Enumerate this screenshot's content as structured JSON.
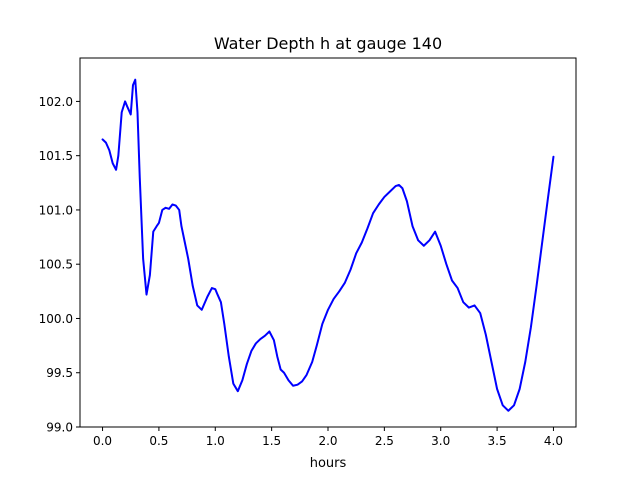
{
  "chart_data": {
    "type": "line",
    "title": "Water Depth h at gauge 140",
    "xlabel": "hours",
    "ylabel": "",
    "xlim": [
      -0.2,
      4.2
    ],
    "ylim": [
      99.0,
      102.4
    ],
    "grid": false,
    "x_ticks": [
      0.0,
      0.5,
      1.0,
      1.5,
      2.0,
      2.5,
      3.0,
      3.5,
      4.0
    ],
    "x_tick_labels": [
      "0.0",
      "0.5",
      "1.0",
      "1.5",
      "2.0",
      "2.5",
      "3.0",
      "3.5",
      "4.0"
    ],
    "y_ticks": [
      99.0,
      99.5,
      100.0,
      100.5,
      101.0,
      101.5,
      102.0
    ],
    "y_tick_labels": [
      "99.0",
      "99.5",
      "100.0",
      "100.5",
      "101.0",
      "101.5",
      "102.0"
    ],
    "series": [
      {
        "color": "#0000ff",
        "x": [
          0.0,
          0.03,
          0.06,
          0.09,
          0.12,
          0.14,
          0.17,
          0.2,
          0.22,
          0.25,
          0.27,
          0.29,
          0.31,
          0.33,
          0.36,
          0.39,
          0.42,
          0.45,
          0.48,
          0.5,
          0.53,
          0.56,
          0.59,
          0.62,
          0.65,
          0.68,
          0.7,
          0.73,
          0.76,
          0.8,
          0.84,
          0.88,
          0.93,
          0.97,
          1.0,
          1.02,
          1.05,
          1.08,
          1.12,
          1.16,
          1.2,
          1.24,
          1.28,
          1.32,
          1.36,
          1.4,
          1.44,
          1.48,
          1.52,
          1.55,
          1.58,
          1.61,
          1.65,
          1.69,
          1.73,
          1.77,
          1.81,
          1.86,
          1.9,
          1.95,
          2.0,
          2.05,
          2.1,
          2.15,
          2.2,
          2.25,
          2.3,
          2.35,
          2.4,
          2.45,
          2.5,
          2.55,
          2.6,
          2.63,
          2.66,
          2.7,
          2.75,
          2.8,
          2.85,
          2.9,
          2.95,
          3.0,
          3.05,
          3.1,
          3.15,
          3.2,
          3.25,
          3.3,
          3.35,
          3.4,
          3.45,
          3.5,
          3.55,
          3.6,
          3.65,
          3.7,
          3.75,
          3.8,
          3.85,
          3.9,
          3.95,
          4.0
        ],
        "y": [
          101.65,
          101.62,
          101.55,
          101.43,
          101.37,
          101.5,
          101.9,
          102.0,
          101.95,
          101.88,
          102.15,
          102.2,
          101.9,
          101.3,
          100.55,
          100.22,
          100.4,
          100.8,
          100.85,
          100.88,
          101.0,
          101.02,
          101.01,
          101.05,
          101.04,
          101.0,
          100.85,
          100.7,
          100.55,
          100.3,
          100.12,
          100.08,
          100.2,
          100.28,
          100.27,
          100.22,
          100.15,
          99.95,
          99.65,
          99.4,
          99.33,
          99.43,
          99.58,
          99.7,
          99.77,
          99.81,
          99.84,
          99.88,
          99.8,
          99.65,
          99.53,
          99.5,
          99.43,
          99.38,
          99.39,
          99.42,
          99.48,
          99.6,
          99.75,
          99.95,
          100.08,
          100.18,
          100.25,
          100.33,
          100.45,
          100.6,
          100.7,
          100.83,
          100.97,
          101.05,
          101.12,
          101.17,
          101.22,
          101.23,
          101.2,
          101.08,
          100.85,
          100.72,
          100.67,
          100.72,
          100.8,
          100.67,
          100.5,
          100.35,
          100.28,
          100.15,
          100.1,
          100.12,
          100.05,
          99.85,
          99.6,
          99.35,
          99.2,
          99.15,
          99.2,
          99.35,
          99.6,
          99.92,
          100.3,
          100.7,
          101.1,
          101.49
        ]
      }
    ]
  }
}
